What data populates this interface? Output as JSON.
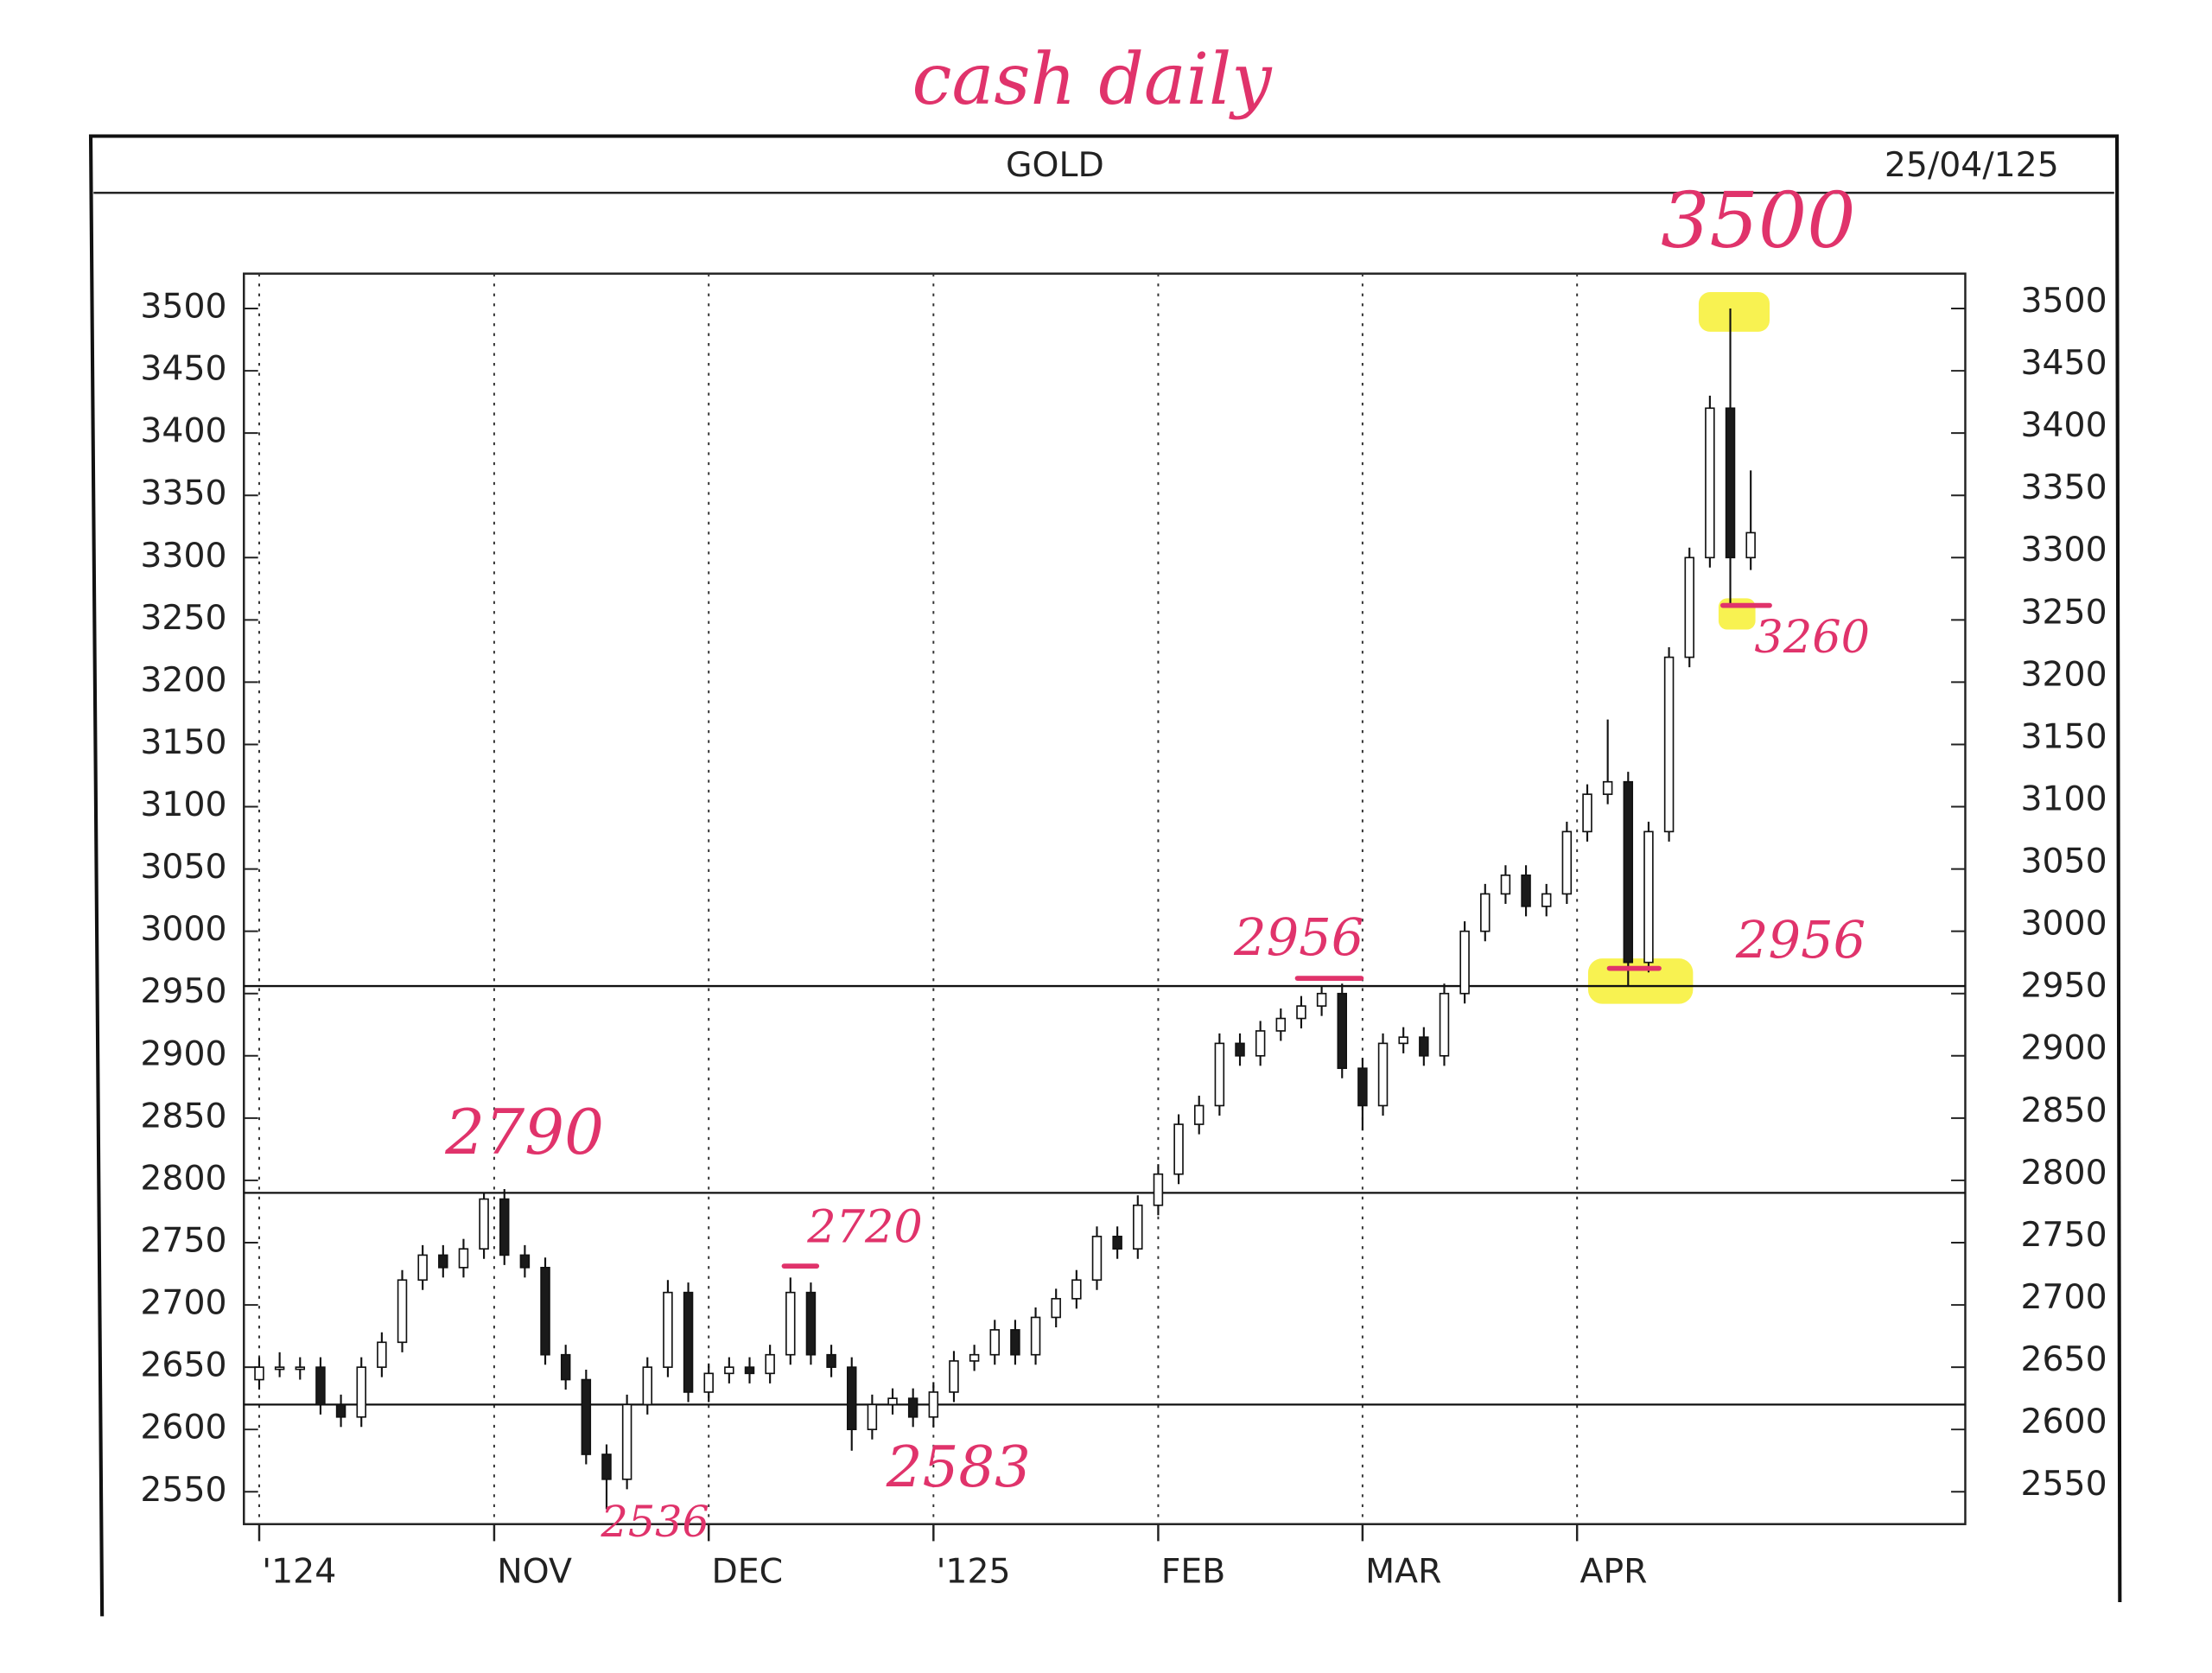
{
  "chart_data": {
    "type": "candlestick",
    "title": "cash daily",
    "header": "GOLD",
    "date": "25/04/125",
    "x": [
      0,
      2,
      4,
      6,
      8,
      10,
      12,
      14,
      16,
      18,
      20,
      22,
      24,
      26,
      28,
      30,
      32,
      34,
      36,
      38,
      40,
      42,
      44,
      46,
      48,
      50,
      52,
      54,
      56,
      58,
      60,
      62,
      64,
      66,
      68,
      70,
      72,
      74,
      76,
      78,
      80,
      82,
      84,
      86,
      88,
      90,
      92,
      94,
      96,
      98,
      100,
      102,
      104,
      106,
      108,
      110,
      112,
      114,
      116,
      118,
      120,
      122,
      124,
      126,
      128,
      130,
      132,
      134,
      136,
      138,
      140,
      142,
      144,
      146
    ],
    "open": [
      2640,
      2650,
      2650,
      2650,
      2620,
      2610,
      2650,
      2670,
      2720,
      2740,
      2730,
      2745,
      2785,
      2740,
      2730,
      2660,
      2640,
      2580,
      2560,
      2620,
      2650,
      2710,
      2630,
      2645,
      2650,
      2645,
      2660,
      2710,
      2660,
      2650,
      2600,
      2620,
      2625,
      2610,
      2630,
      2655,
      2660,
      2680,
      2660,
      2690,
      2705,
      2720,
      2755,
      2745,
      2780,
      2805,
      2845,
      2860,
      2910,
      2900,
      2920,
      2930,
      2940,
      2950,
      2890,
      2860,
      2910,
      2915,
      2900,
      2950,
      3000,
      3030,
      3045,
      3020,
      3030,
      3080,
      3110,
      3120,
      2975,
      3080,
      3220,
      3300,
      3420,
      3300
    ],
    "high": [
      2658,
      2662,
      2658,
      2658,
      2628,
      2658,
      2678,
      2728,
      2748,
      2748,
      2753,
      2790,
      2793,
      2748,
      2738,
      2668,
      2648,
      2588,
      2628,
      2658,
      2720,
      2718,
      2653,
      2658,
      2658,
      2668,
      2722,
      2718,
      2668,
      2658,
      2628,
      2633,
      2633,
      2638,
      2663,
      2668,
      2688,
      2688,
      2698,
      2713,
      2728,
      2763,
      2763,
      2788,
      2813,
      2853,
      2868,
      2918,
      2918,
      2928,
      2938,
      2948,
      2956,
      2958,
      2898,
      2918,
      2923,
      2923,
      2958,
      3008,
      3038,
      3053,
      3053,
      3038,
      3088,
      3118,
      3170,
      3128,
      3088,
      3228,
      3308,
      3430,
      3500,
      3370
    ],
    "low": [
      2632,
      2642,
      2640,
      2612,
      2602,
      2602,
      2642,
      2662,
      2712,
      2722,
      2722,
      2737,
      2732,
      2722,
      2652,
      2632,
      2572,
      2536,
      2552,
      2612,
      2642,
      2622,
      2622,
      2637,
      2637,
      2637,
      2652,
      2652,
      2642,
      2583,
      2592,
      2612,
      2602,
      2602,
      2622,
      2647,
      2652,
      2652,
      2652,
      2682,
      2697,
      2712,
      2737,
      2737,
      2772,
      2797,
      2837,
      2852,
      2892,
      2892,
      2912,
      2922,
      2932,
      2882,
      2840,
      2852,
      2902,
      2892,
      2892,
      2942,
      2992,
      3022,
      3012,
      3012,
      3022,
      3072,
      3102,
      2956,
      2967,
      3072,
      3212,
      3292,
      3260,
      3290
    ],
    "close": [
      2650,
      2650,
      2650,
      2620,
      2610,
      2650,
      2670,
      2720,
      2740,
      2730,
      2745,
      2785,
      2740,
      2730,
      2660,
      2640,
      2580,
      2560,
      2620,
      2650,
      2710,
      2630,
      2645,
      2650,
      2645,
      2660,
      2710,
      2660,
      2650,
      2600,
      2620,
      2625,
      2610,
      2630,
      2655,
      2660,
      2680,
      2660,
      2690,
      2705,
      2720,
      2755,
      2745,
      2780,
      2805,
      2845,
      2860,
      2910,
      2900,
      2920,
      2930,
      2940,
      2950,
      2890,
      2860,
      2910,
      2915,
      2900,
      2950,
      3000,
      3030,
      3045,
      3020,
      3030,
      3080,
      3110,
      3120,
      2975,
      3080,
      3220,
      3300,
      3420,
      3300,
      3320
    ],
    "up_color": "#ffffff",
    "down_color": "#1a1a1a",
    "xlim": [
      -1.5,
      167
    ],
    "xticks": [
      {
        "value": 0,
        "label": "'124"
      },
      {
        "value": 23,
        "label": "NOV"
      },
      {
        "value": 44,
        "label": "DEC"
      },
      {
        "value": 66,
        "label": "'125"
      },
      {
        "value": 88,
        "label": "FEB"
      },
      {
        "value": 108,
        "label": "MAR"
      },
      {
        "value": 129,
        "label": "APR"
      }
    ],
    "ylim": [
      2524,
      3528
    ],
    "yticks": [
      2550,
      2600,
      2650,
      2700,
      2750,
      2800,
      2850,
      2900,
      2950,
      3000,
      3050,
      3100,
      3150,
      3200,
      3250,
      3300,
      3350,
      3400,
      3450,
      3500
    ],
    "grid": true,
    "levels": [
      2956,
      2790,
      2620
    ],
    "annotations": [
      "3500",
      "3260",
      "2956",
      "2956",
      "2790",
      "2720",
      "2536",
      "2583"
    ],
    "annotation_color": "#e0336b"
  }
}
